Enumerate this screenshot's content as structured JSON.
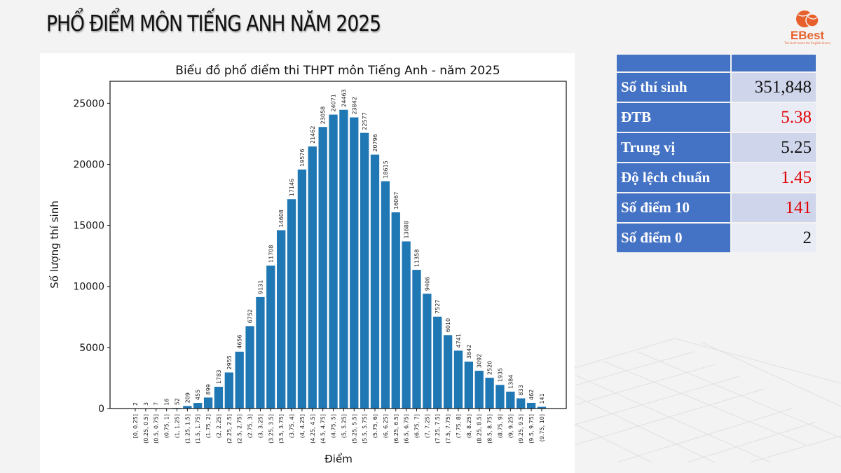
{
  "page": {
    "title": "PHỔ ĐIỂM MÔN TIẾNG ANH NĂM 2025",
    "logo": {
      "name": "EBest",
      "tagline": "The best home for English lovers",
      "color": "#e8612c"
    }
  },
  "stats_table": {
    "header": [
      "",
      ""
    ],
    "rows": [
      {
        "label": "Số thí sinh",
        "value": "351,848",
        "highlight": false
      },
      {
        "label": "ĐTB",
        "value": "5.38",
        "highlight": true
      },
      {
        "label": "Trung vị",
        "value": "5.25",
        "highlight": false
      },
      {
        "label": "Độ lệch chuẩn",
        "value": "1.45",
        "highlight": true
      },
      {
        "label": "Số điểm 10",
        "value": "141",
        "highlight": true
      },
      {
        "label": "Số điểm 0",
        "value": "2",
        "highlight": false
      }
    ],
    "colors": {
      "label_bg": "#4472c4",
      "value_bg_odd": "#cfd5ea",
      "value_bg_even": "#e9ebf5",
      "highlight_text": "#e00000"
    }
  },
  "chart_data": {
    "type": "bar",
    "title": "Biểu đồ phổ điểm thi THPT môn Tiếng Anh - năm 2025",
    "xlabel": "Điểm",
    "ylabel": "Số lượng thí sinh",
    "ylim": [
      0,
      26800
    ],
    "yticks": [
      0,
      5000,
      10000,
      15000,
      20000,
      25000
    ],
    "grid": false,
    "legend": null,
    "bar_color": "#1f77b4",
    "categories": [
      "[0, 0.25]",
      "(0.25, 0.5]",
      "(0.5, 0.75]",
      "(0.75, 1]",
      "(1, 1.25]",
      "(1.25, 1.5]",
      "(1.5, 1.75]",
      "(1.75, 2]",
      "(2, 2.25]",
      "(2.25, 2.5]",
      "(2.5, 2.75]",
      "(2.75, 3]",
      "(3, 3.25]",
      "(3.25, 3.5]",
      "(3.5, 3.75]",
      "(3.75, 4]",
      "(4, 4.25]",
      "(4.25, 4.5]",
      "(4.5, 4.75]",
      "(4.75, 5]",
      "(5, 5.25]",
      "(5.25, 5.5]",
      "(5.5, 5.75]",
      "(5.75, 6]",
      "(6, 6.25]",
      "(6.25, 6.5]",
      "(6.5, 6.75]",
      "(6.75, 7]",
      "(7, 7.25]",
      "(7.25, 7.5]",
      "(7.5, 7.75]",
      "(7.75, 8]",
      "(8, 8.25]",
      "(8.25, 8.5]",
      "(8.5, 8.75]",
      "(8.75, 9]",
      "(9, 9.25]",
      "(9.25, 9.5]",
      "(9.5, 9.75]",
      "(9.75, 10]"
    ],
    "values": [
      2,
      3,
      7,
      16,
      52,
      209,
      455,
      899,
      1783,
      2955,
      4656,
      6752,
      9131,
      11708,
      14608,
      17146,
      19576,
      21462,
      23058,
      24071,
      24463,
      23842,
      22577,
      20796,
      18615,
      16067,
      13688,
      11358,
      9406,
      7527,
      6010,
      4741,
      3842,
      3092,
      2520,
      1935,
      1384,
      833,
      462,
      141
    ]
  }
}
